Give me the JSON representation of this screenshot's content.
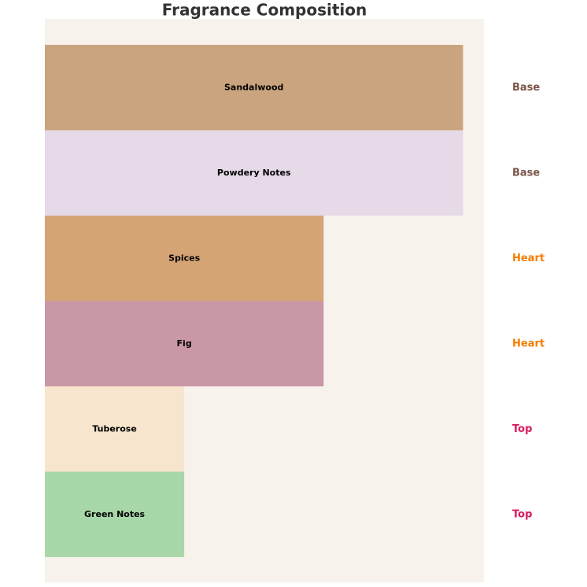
{
  "chart_data": {
    "type": "barh",
    "title": "Fragrance Composition",
    "categories": [
      "Sandalwood",
      "Powdery Notes",
      "Spices",
      "Fig",
      "Tuberose",
      "Green Notes"
    ],
    "values": [
      30,
      30,
      20,
      20,
      10,
      10
    ],
    "colors": [
      "#c9a47e",
      "#e6d9e8",
      "#d4a475",
      "#c997a6",
      "#f7e5cd",
      "#a8d8a9"
    ],
    "layers": [
      "Base",
      "Base",
      "Heart",
      "Heart",
      "Top",
      "Top"
    ],
    "layer_colors": {
      "Base": "#795548",
      "Heart": "#f57c00",
      "Top": "#d81b60"
    },
    "xlim": [
      0,
      31.5
    ],
    "background": "#f7f2ec"
  }
}
